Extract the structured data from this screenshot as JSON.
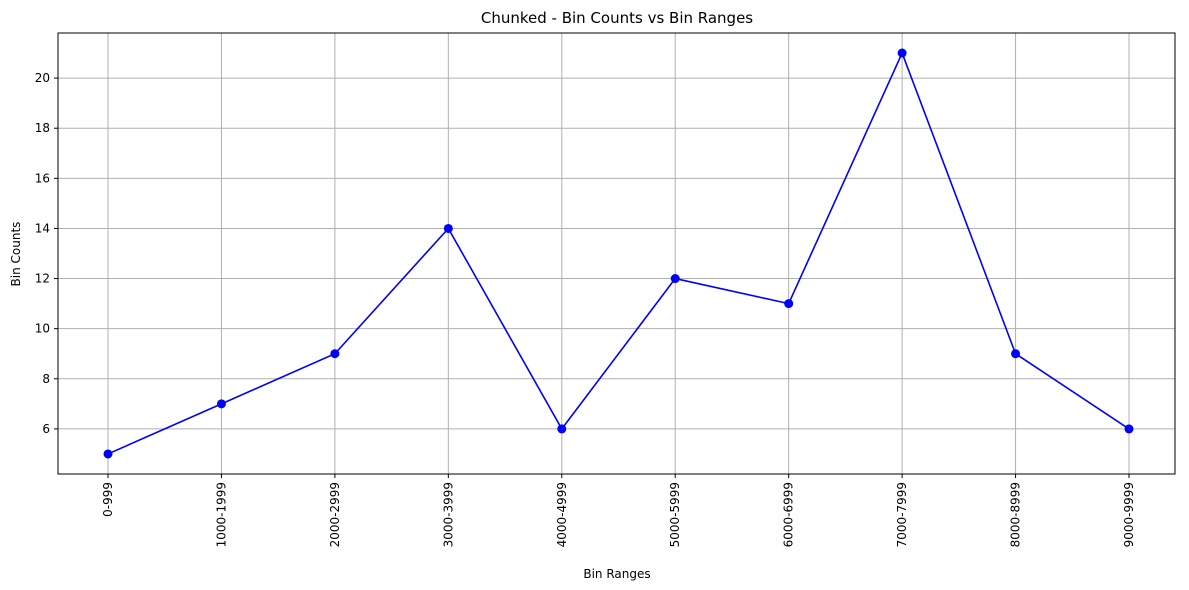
{
  "chart_data": {
    "type": "line",
    "title": "Chunked - Bin Counts vs Bin Ranges",
    "xlabel": "Bin Ranges",
    "ylabel": "Bin Counts",
    "categories": [
      "0-999",
      "1000-1999",
      "2000-2999",
      "3000-3999",
      "4000-4999",
      "5000-5999",
      "6000-6999",
      "7000-7999",
      "8000-8999",
      "9000-9999"
    ],
    "values": [
      5,
      7,
      9,
      14,
      6,
      12,
      11,
      21,
      9,
      6
    ],
    "ylim": [
      4.2,
      21.8
    ],
    "yticks": [
      6,
      8,
      10,
      12,
      14,
      16,
      18,
      20
    ],
    "grid": true,
    "marker": "circle",
    "color": "#0000ff",
    "grid_color": "#b0b0b0"
  }
}
